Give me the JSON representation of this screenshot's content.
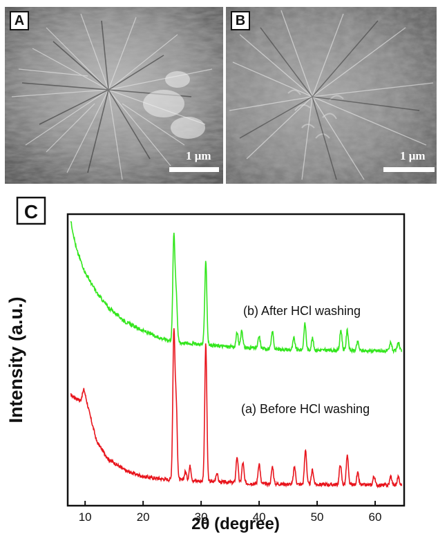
{
  "panels": {
    "a": {
      "tag": "A",
      "scale_label": "1 μm"
    },
    "b": {
      "tag": "B",
      "scale_label": "1 μm"
    },
    "c": {
      "tag": "C"
    }
  },
  "chart_data": {
    "type": "line",
    "xlabel": "2θ (degree)",
    "ylabel": "Intensity (a.u.)",
    "xlim": [
      7,
      65
    ],
    "xticks": [
      10,
      20,
      30,
      40,
      50,
      60
    ],
    "y_ticks_shown": false,
    "grid": false,
    "series": [
      {
        "name": "(a) Before HCl washing",
        "color": "#e8141c",
        "baseline": 0.1,
        "background": [
          [
            7.5,
            0.38
          ],
          [
            9.2,
            0.36
          ],
          [
            9.8,
            0.4
          ],
          [
            10.6,
            0.33
          ],
          [
            12,
            0.22
          ],
          [
            14,
            0.16
          ],
          [
            17,
            0.12
          ],
          [
            20,
            0.1
          ],
          [
            24,
            0.09
          ],
          [
            40,
            0.075
          ],
          [
            64.5,
            0.07
          ]
        ],
        "peaks": [
          [
            25.3,
            0.5
          ],
          [
            25.7,
            0.25
          ],
          [
            27.3,
            0.03
          ],
          [
            28.1,
            0.05
          ],
          [
            30.8,
            0.47
          ],
          [
            32.7,
            0.03
          ],
          [
            36.2,
            0.09
          ],
          [
            37.2,
            0.07
          ],
          [
            40.0,
            0.07
          ],
          [
            42.3,
            0.06
          ],
          [
            46.1,
            0.06
          ],
          [
            48.0,
            0.12
          ],
          [
            49.2,
            0.05
          ],
          [
            54.0,
            0.07
          ],
          [
            55.2,
            0.1
          ],
          [
            57.0,
            0.04
          ],
          [
            59.8,
            0.03
          ],
          [
            62.7,
            0.03
          ],
          [
            64.0,
            0.03
          ]
        ]
      },
      {
        "name": "(b) After HCl washing",
        "color": "#33e61d",
        "baseline": 0.5,
        "background": [
          [
            7.5,
            0.98
          ],
          [
            8.5,
            0.88
          ],
          [
            10,
            0.8
          ],
          [
            12,
            0.73
          ],
          [
            14,
            0.68
          ],
          [
            17,
            0.63
          ],
          [
            20,
            0.6
          ],
          [
            23,
            0.575
          ],
          [
            26,
            0.56
          ],
          [
            35,
            0.545
          ],
          [
            45,
            0.535
          ],
          [
            64.5,
            0.53
          ]
        ],
        "peaks": [
          [
            25.3,
            0.36
          ],
          [
            25.7,
            0.16
          ],
          [
            30.8,
            0.29
          ],
          [
            36.2,
            0.05
          ],
          [
            37.0,
            0.06
          ],
          [
            40.0,
            0.04
          ],
          [
            42.3,
            0.06
          ],
          [
            46.0,
            0.04
          ],
          [
            47.9,
            0.09
          ],
          [
            49.2,
            0.04
          ],
          [
            54.1,
            0.07
          ],
          [
            55.2,
            0.07
          ],
          [
            57.0,
            0.03
          ],
          [
            62.7,
            0.03
          ],
          [
            64.0,
            0.03
          ]
        ]
      }
    ]
  }
}
